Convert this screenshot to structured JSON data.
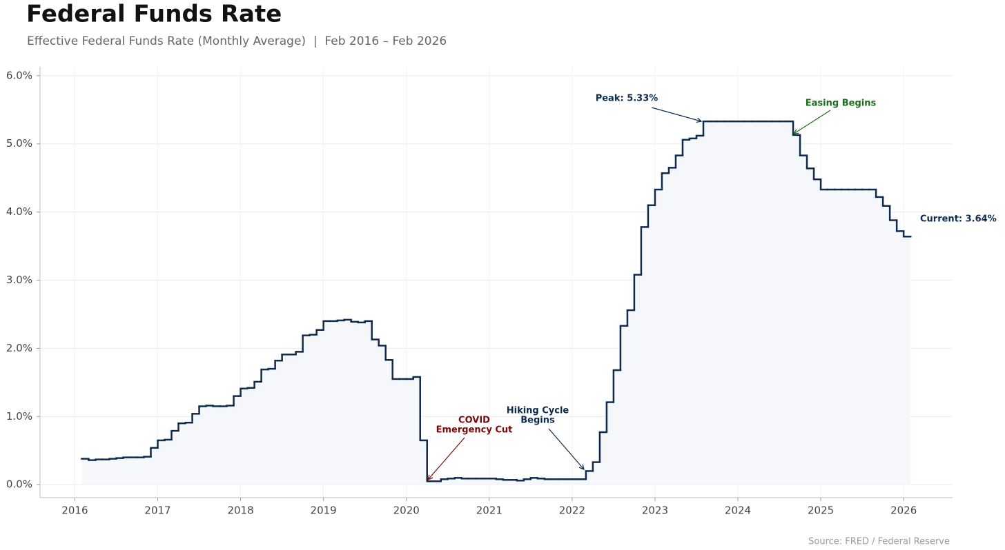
{
  "chart_data": {
    "type": "step",
    "title": "Federal Funds Rate",
    "subtitle": "Effective Federal Funds Rate (Monthly Average)  |  Feb 2016 – Feb 2026",
    "source": "Source: FRED / Federal Reserve",
    "x": [
      "2016-02",
      "2016-03",
      "2016-04",
      "2016-05",
      "2016-06",
      "2016-07",
      "2016-08",
      "2016-09",
      "2016-10",
      "2016-11",
      "2016-12",
      "2017-01",
      "2017-02",
      "2017-03",
      "2017-04",
      "2017-05",
      "2017-06",
      "2017-07",
      "2017-08",
      "2017-09",
      "2017-10",
      "2017-11",
      "2017-12",
      "2018-01",
      "2018-02",
      "2018-03",
      "2018-04",
      "2018-05",
      "2018-06",
      "2018-07",
      "2018-08",
      "2018-09",
      "2018-10",
      "2018-11",
      "2018-12",
      "2019-01",
      "2019-02",
      "2019-03",
      "2019-04",
      "2019-05",
      "2019-06",
      "2019-07",
      "2019-08",
      "2019-09",
      "2019-10",
      "2019-11",
      "2019-12",
      "2020-01",
      "2020-02",
      "2020-03",
      "2020-04",
      "2020-05",
      "2020-06",
      "2020-07",
      "2020-08",
      "2020-09",
      "2020-10",
      "2020-11",
      "2020-12",
      "2021-01",
      "2021-02",
      "2021-03",
      "2021-04",
      "2021-05",
      "2021-06",
      "2021-07",
      "2021-08",
      "2021-09",
      "2021-10",
      "2021-11",
      "2021-12",
      "2022-01",
      "2022-02",
      "2022-03",
      "2022-04",
      "2022-05",
      "2022-06",
      "2022-07",
      "2022-08",
      "2022-09",
      "2022-10",
      "2022-11",
      "2022-12",
      "2023-01",
      "2023-02",
      "2023-03",
      "2023-04",
      "2023-05",
      "2023-06",
      "2023-07",
      "2023-08",
      "2023-09",
      "2023-10",
      "2023-11",
      "2023-12",
      "2024-01",
      "2024-02",
      "2024-03",
      "2024-04",
      "2024-05",
      "2024-06",
      "2024-07",
      "2024-08",
      "2024-09",
      "2024-10",
      "2024-11",
      "2024-12",
      "2025-01",
      "2025-02",
      "2025-03",
      "2025-04",
      "2025-05",
      "2025-06",
      "2025-07",
      "2025-08",
      "2025-09",
      "2025-10",
      "2025-11",
      "2025-12",
      "2026-01",
      "2026-02"
    ],
    "values": [
      0.38,
      0.36,
      0.37,
      0.37,
      0.38,
      0.39,
      0.4,
      0.4,
      0.4,
      0.41,
      0.54,
      0.65,
      0.66,
      0.79,
      0.9,
      0.91,
      1.04,
      1.15,
      1.16,
      1.15,
      1.15,
      1.16,
      1.3,
      1.41,
      1.42,
      1.51,
      1.69,
      1.7,
      1.82,
      1.91,
      1.91,
      1.95,
      2.19,
      2.2,
      2.27,
      2.4,
      2.4,
      2.41,
      2.42,
      2.39,
      2.38,
      2.4,
      2.13,
      2.04,
      1.83,
      1.55,
      1.55,
      1.55,
      1.58,
      0.65,
      0.05,
      0.05,
      0.08,
      0.09,
      0.1,
      0.09,
      0.09,
      0.09,
      0.09,
      0.09,
      0.08,
      0.07,
      0.07,
      0.06,
      0.08,
      0.1,
      0.09,
      0.08,
      0.08,
      0.08,
      0.08,
      0.08,
      0.08,
      0.2,
      0.33,
      0.77,
      1.21,
      1.68,
      2.33,
      2.56,
      3.08,
      3.78,
      4.1,
      4.33,
      4.57,
      4.65,
      4.83,
      5.06,
      5.08,
      5.12,
      5.33,
      5.33,
      5.33,
      5.33,
      5.33,
      5.33,
      5.33,
      5.33,
      5.33,
      5.33,
      5.33,
      5.33,
      5.33,
      5.13,
      4.83,
      4.64,
      4.48,
      4.33,
      4.33,
      4.33,
      4.33,
      4.33,
      4.33,
      4.33,
      4.33,
      4.22,
      4.09,
      3.88,
      3.72,
      3.64,
      3.64
    ],
    "color": "#0d2b4e",
    "fill": "#f5f7fa",
    "xlim": [
      2015.58,
      2026.59
    ],
    "xticks": [
      2016,
      2017,
      2018,
      2019,
      2020,
      2021,
      2022,
      2023,
      2024,
      2025,
      2026
    ],
    "ylim": [
      -0.19,
      6.13
    ],
    "yticks": [
      {
        "value": 0,
        "label": "0.0%"
      },
      {
        "value": 1,
        "label": "1.0%"
      },
      {
        "value": 2,
        "label": "2.0%"
      },
      {
        "value": 3,
        "label": "3.0%"
      },
      {
        "value": 4,
        "label": "4.0%"
      },
      {
        "value": 5,
        "label": "5.0%"
      },
      {
        "value": 6,
        "label": "6.0%"
      }
    ],
    "grid": true,
    "annotations": [
      {
        "lines": [
          "Peak: 5.33%"
        ],
        "color": "#0d2b4e"
      },
      {
        "lines": [
          "Easing Begins"
        ],
        "color": "#1a6b1a"
      },
      {
        "lines": [
          "COVID",
          "Emergency Cut"
        ],
        "color": "#7a0a0a"
      },
      {
        "lines": [
          "Hiking Cycle",
          "Begins"
        ],
        "color": "#0d2b4e"
      },
      {
        "lines": [
          "Current: 3.64%"
        ],
        "color": "#0d2b4e"
      }
    ]
  }
}
